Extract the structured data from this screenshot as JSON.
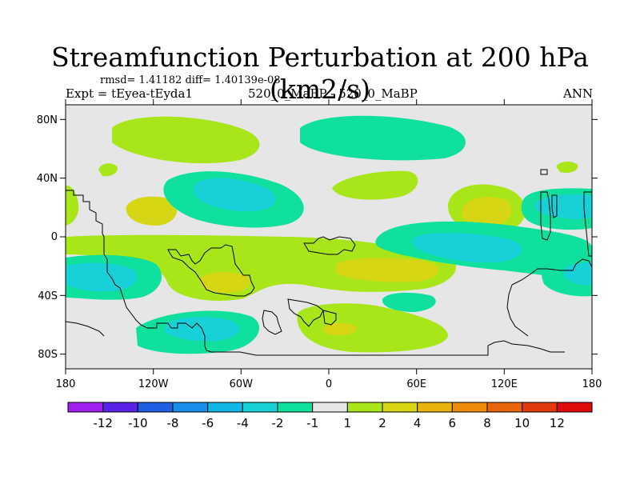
{
  "chart_data": {
    "type": "heatmap",
    "title": "Streamfunction Perturbation at 200 hPa (km2/s)",
    "stats_label": "rmsd= 1.41182 diff= 1.40139e-08",
    "left_label": "Expt = tEyea-tEyda1",
    "center_label": "520_0_MaBP - 520_0_MaBP",
    "right_label": "ANN",
    "x_ticks": [
      "180",
      "120W",
      "60W",
      "0",
      "60E",
      "120E",
      "180"
    ],
    "x_tick_values": [
      -180,
      -120,
      -60,
      0,
      60,
      120,
      180
    ],
    "y_ticks": [
      "80N",
      "40N",
      "0",
      "40S",
      "80S"
    ],
    "y_tick_values": [
      80,
      40,
      0,
      -40,
      -80
    ],
    "xlim": [
      -180,
      180
    ],
    "ylim": [
      -90,
      90
    ],
    "colorbar": {
      "labels": [
        "-12",
        "-10",
        "-8",
        "-6",
        "-4",
        "-2",
        "-1",
        "1",
        "2",
        "4",
        "6",
        "8",
        "10",
        "12"
      ],
      "colors": [
        "#a020f0",
        "#5a22e6",
        "#1f5ee0",
        "#1a8ee8",
        "#0fb6e6",
        "#18d0d8",
        "#10e09e",
        "#e6e6e6",
        "#a8e61a",
        "#d6d614",
        "#e8b40a",
        "#ec8c0a",
        "#e8640a",
        "#e23a0a",
        "#e00a0a"
      ]
    },
    "field_regions": [
      {
        "lon": [
          -150,
          -90
        ],
        "lat": [
          76,
          86
        ],
        "category": "1 to 2"
      },
      {
        "lon": [
          -25,
          45
        ],
        "lat": [
          70,
          88
        ],
        "category": "-1 to -2"
      },
      {
        "lon": [
          -115,
          -70
        ],
        "lat": [
          34,
          42
        ],
        "category": "-4 to -6"
      },
      {
        "lon": [
          -135,
          -110
        ],
        "lat": [
          14,
          26
        ],
        "category": "2 to 4"
      },
      {
        "lon": [
          50,
          90
        ],
        "lat": [
          -8,
          4
        ],
        "category": "-4 to -6"
      },
      {
        "lon": [
          -175,
          -140
        ],
        "lat": [
          -22,
          -30
        ],
        "category": "-4 to -6"
      },
      {
        "lon": [
          -100,
          -60
        ],
        "lat": [
          -18,
          -30
        ],
        "category": "4 to 6"
      },
      {
        "lon": [
          -100,
          -60
        ],
        "lat": [
          -55,
          -62
        ],
        "category": "-4 to -6"
      },
      {
        "lon": [
          15,
          50
        ],
        "lat": [
          -20,
          -32
        ],
        "category": "2 to 4"
      },
      {
        "lon": [
          80,
          125
        ],
        "lat": [
          8,
          18
        ],
        "category": "2 to 4"
      },
      {
        "lon": [
          140,
          175
        ],
        "lat": [
          14,
          26
        ],
        "category": "-2 to -4"
      },
      {
        "lon": [
          -5,
          25
        ],
        "lat": [
          -60,
          -65
        ],
        "category": "2 to 4"
      }
    ]
  }
}
